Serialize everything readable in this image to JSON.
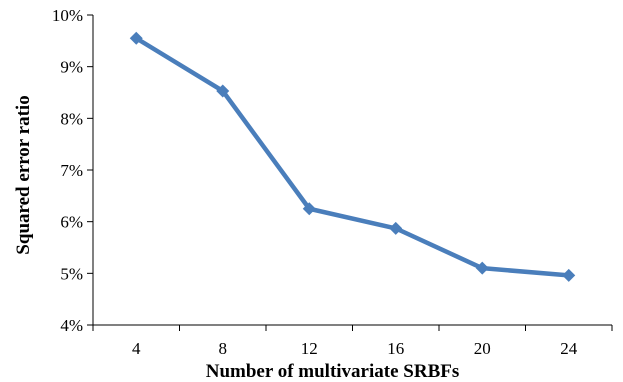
{
  "chart_data": {
    "type": "line",
    "title": "",
    "xlabel": "Number of multivariate SRBFs",
    "ylabel": "Squared error ratio",
    "x": [
      4,
      8,
      12,
      16,
      20,
      24
    ],
    "categories": [
      "4",
      "8",
      "12",
      "16",
      "20",
      "24"
    ],
    "series": [
      {
        "values": [
          9.55,
          8.53,
          6.25,
          5.87,
          5.1,
          4.96
        ]
      }
    ],
    "ylim": [
      4,
      10
    ],
    "yticks": [
      4,
      5,
      6,
      7,
      8,
      9,
      10
    ],
    "ytick_labels": [
      "4%",
      "5%",
      "6%",
      "7%",
      "8%",
      "9%",
      "10%"
    ],
    "y_unit": "%",
    "grid": false,
    "legend": "none",
    "colors": {
      "line": "#4a7ebb",
      "marker": "#4a7ebb",
      "axis": "#000000"
    },
    "marker": "diamond"
  }
}
